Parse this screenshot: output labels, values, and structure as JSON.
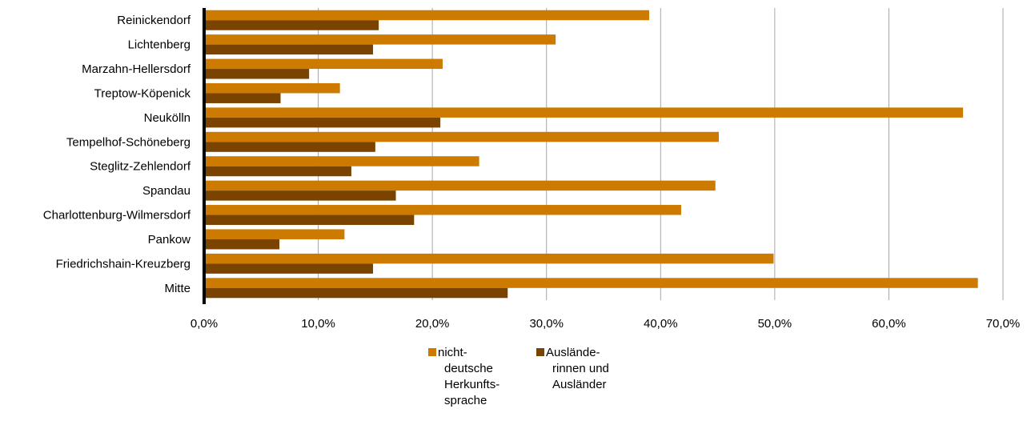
{
  "chart_data": {
    "type": "bar",
    "orientation": "horizontal",
    "title": "",
    "xlabel": "",
    "ylabel": "",
    "categories": [
      "Reinickendorf",
      "Lichtenberg",
      "Marzahn-Hellersdorf",
      "Treptow-Köpenick",
      "Neukölln",
      "Tempelhof-Schöneberg",
      "Steglitz-Zehlendorf",
      "Spandau",
      "Charlottenburg-Wilmersdorf",
      "Pankow",
      "Friedrichshain-Kreuzberg",
      "Mitte"
    ],
    "series": [
      {
        "name": "nicht-deutsche Herkunftssprache",
        "legend_lines": [
          "nicht-",
          "deutsche",
          "Herkunfts-",
          "sprache"
        ],
        "color": "#CC7A00",
        "values": [
          39.0,
          30.8,
          20.9,
          11.9,
          66.5,
          45.1,
          24.1,
          44.8,
          41.8,
          12.3,
          49.9,
          67.8
        ]
      },
      {
        "name": "Ausländerinnen und Ausländer",
        "legend_lines": [
          "Auslände-",
          "rinnen und",
          "Ausländer"
        ],
        "color": "#7A4300",
        "values": [
          15.3,
          14.8,
          9.2,
          6.7,
          20.7,
          15.0,
          12.9,
          16.8,
          18.4,
          6.6,
          14.8,
          26.6
        ]
      }
    ],
    "xlim": [
      0,
      70
    ],
    "ticks": [
      "0,0%",
      "10,0%",
      "20,0%",
      "30,0%",
      "40,0%",
      "50,0%",
      "60,0%",
      "70,0%"
    ],
    "grid": true,
    "legend_position": "bottom"
  }
}
